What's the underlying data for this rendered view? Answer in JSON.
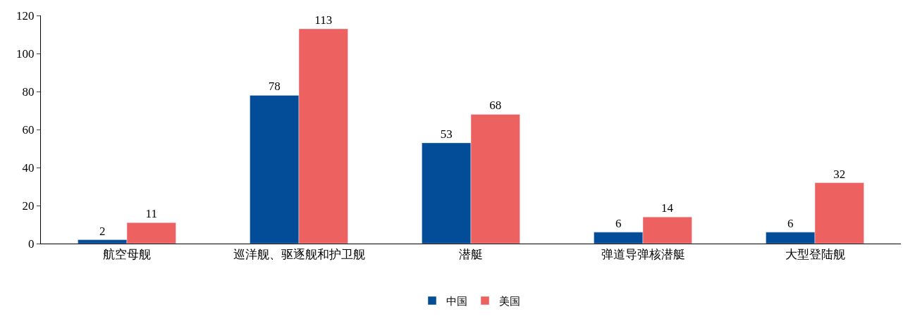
{
  "chart_data": {
    "type": "bar",
    "categories": [
      "航空母舰",
      "巡洋舰、驱逐舰和护卫舰",
      "潜艇",
      "弹道导弹核潜艇",
      "大型登陆舰"
    ],
    "series": [
      {
        "name": "中国",
        "color": "#034c97",
        "values": [
          2,
          78,
          53,
          6,
          6
        ]
      },
      {
        "name": "美国",
        "color": "#ee6161",
        "values": [
          11,
          113,
          68,
          14,
          32
        ]
      }
    ],
    "ylim": [
      0,
      120
    ],
    "yticks": [
      0,
      20,
      40,
      60,
      80,
      100,
      120
    ],
    "data_labels": true,
    "legend": "bottom"
  }
}
